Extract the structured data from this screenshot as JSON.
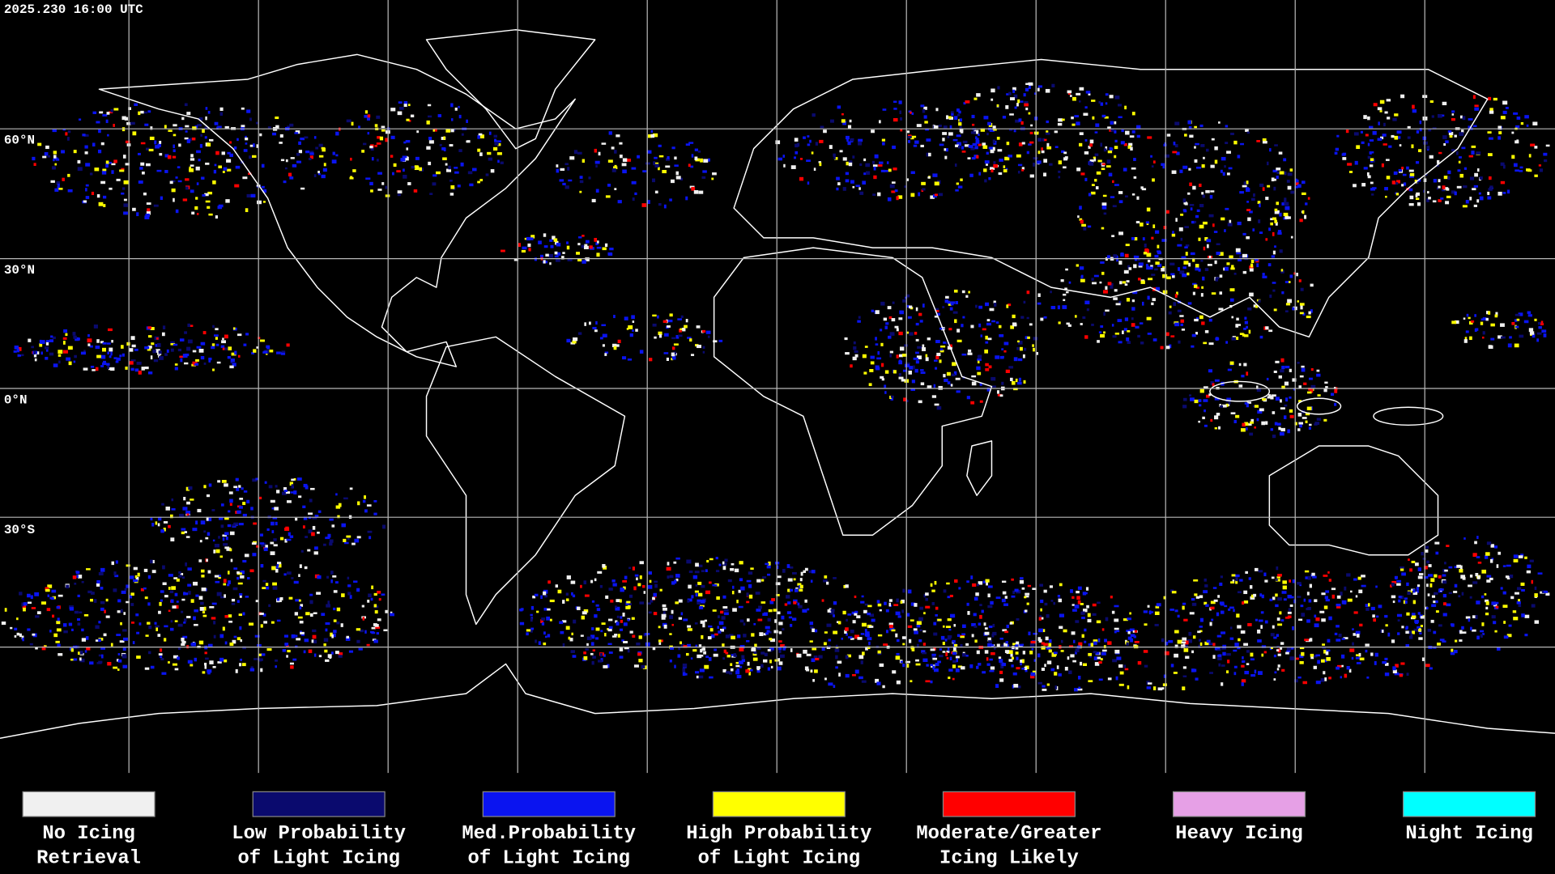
{
  "header": {
    "timestamp": "2025.230 16:00 UTC"
  },
  "map": {
    "latitude_labels": [
      "60°N",
      "30°N",
      "0°N",
      "30°S"
    ]
  },
  "legend": {
    "items": [
      {
        "color": "#f0f0f0",
        "lines": [
          "No Icing",
          "Retrieval"
        ]
      },
      {
        "color": "#0a0a6e",
        "lines": [
          "Low Probability",
          "of Light Icing"
        ]
      },
      {
        "color": "#0a14f0",
        "lines": [
          "Med.Probability",
          "of Light Icing"
        ]
      },
      {
        "color": "#ffff00",
        "lines": [
          "High Probability",
          "of Light Icing"
        ]
      },
      {
        "color": "#ff0000",
        "lines": [
          "Moderate/Greater",
          "Icing Likely"
        ]
      },
      {
        "color": "#e6a0e6",
        "lines": [
          "Heavy Icing"
        ]
      },
      {
        "color": "#00ffff",
        "lines": [
          "Night Icing"
        ]
      }
    ]
  }
}
